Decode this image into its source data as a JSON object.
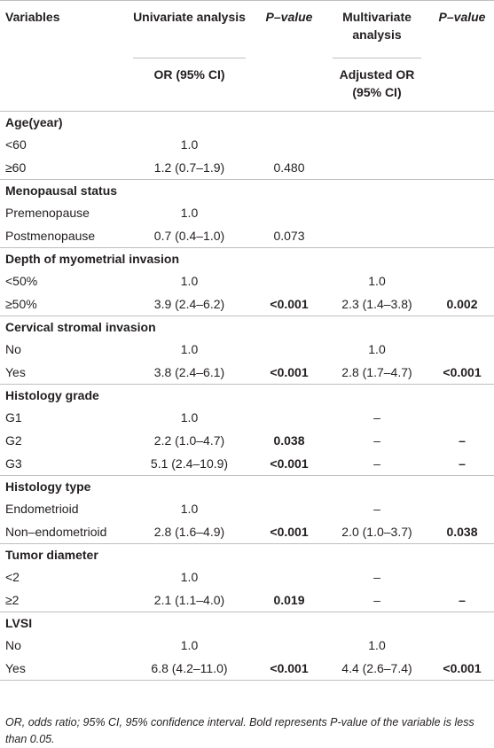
{
  "header": {
    "variables": "Variables",
    "univariate": "Univariate analysis",
    "pvalue1": "P–value",
    "multivariate": "Multivariate analysis",
    "pvalue2": "P–value",
    "or_ci": "OR (95% CI)",
    "adjusted_or": "Adjusted OR (95% CI)"
  },
  "groups": [
    {
      "title": "Age(year)",
      "rows": [
        {
          "label": "<60",
          "or": "1.0",
          "p1": "",
          "p1_bold": false,
          "aor": "",
          "p2": "",
          "p2_bold": false
        },
        {
          "label": "≥60",
          "or": "1.2 (0.7–1.9)",
          "p1": "0.480",
          "p1_bold": false,
          "aor": "",
          "p2": "",
          "p2_bold": false
        }
      ]
    },
    {
      "title": "Menopausal status",
      "rows": [
        {
          "label": "Premenopause",
          "or": "1.0",
          "p1": "",
          "p1_bold": false,
          "aor": "",
          "p2": "",
          "p2_bold": false
        },
        {
          "label": "Postmenopause",
          "or": "0.7 (0.4–1.0)",
          "p1": "0.073",
          "p1_bold": false,
          "aor": "",
          "p2": "",
          "p2_bold": false
        }
      ]
    },
    {
      "title": "Depth of myometrial invasion",
      "rows": [
        {
          "label": "<50%",
          "or": "1.0",
          "p1": "",
          "p1_bold": false,
          "aor": "1.0",
          "p2": "",
          "p2_bold": false
        },
        {
          "label": "≥50%",
          "or": "3.9 (2.4–6.2)",
          "p1": "<0.001",
          "p1_bold": true,
          "aor": "2.3 (1.4–3.8)",
          "p2": "0.002",
          "p2_bold": true
        }
      ]
    },
    {
      "title": "Cervical stromal invasion",
      "rows": [
        {
          "label": "No",
          "or": "1.0",
          "p1": "",
          "p1_bold": false,
          "aor": "1.0",
          "p2": "",
          "p2_bold": false
        },
        {
          "label": "Yes",
          "or": "3.8 (2.4–6.1)",
          "p1": "<0.001",
          "p1_bold": true,
          "aor": "2.8 (1.7–4.7)",
          "p2": "<0.001",
          "p2_bold": true
        }
      ]
    },
    {
      "title": "Histology grade",
      "rows": [
        {
          "label": "G1",
          "or": "1.0",
          "p1": "",
          "p1_bold": false,
          "aor": "–",
          "p2": "",
          "p2_bold": false
        },
        {
          "label": "G2",
          "or": "2.2 (1.0–4.7)",
          "p1": "0.038",
          "p1_bold": true,
          "aor": "–",
          "p2": "–",
          "p2_bold": true
        },
        {
          "label": "G3",
          "or": "5.1 (2.4–10.9)",
          "p1": "<0.001",
          "p1_bold": true,
          "aor": "–",
          "p2": "–",
          "p2_bold": true
        }
      ]
    },
    {
      "title": "Histology type",
      "rows": [
        {
          "label": "Endometrioid",
          "or": "1.0",
          "p1": "",
          "p1_bold": false,
          "aor": "–",
          "p2": "",
          "p2_bold": false
        },
        {
          "label": "Non–endometrioid",
          "or": "2.8 (1.6–4.9)",
          "p1": "<0.001",
          "p1_bold": true,
          "aor": "2.0 (1.0–3.7)",
          "p2": "0.038",
          "p2_bold": true
        }
      ]
    },
    {
      "title": "Tumor diameter",
      "rows": [
        {
          "label": "<2",
          "or": "1.0",
          "p1": "",
          "p1_bold": false,
          "aor": "–",
          "p2": "",
          "p2_bold": false
        },
        {
          "label": "≥2",
          "or": "2.1 (1.1–4.0)",
          "p1": "0.019",
          "p1_bold": true,
          "aor": "–",
          "p2": "–",
          "p2_bold": true
        }
      ]
    },
    {
      "title": "LVSI",
      "rows": [
        {
          "label": "No",
          "or": "1.0",
          "p1": "",
          "p1_bold": false,
          "aor": "1.0",
          "p2": "",
          "p2_bold": false
        },
        {
          "label": "Yes",
          "or": "6.8 (4.2–11.0)",
          "p1": "<0.001",
          "p1_bold": true,
          "aor": "4.4 (2.6–7.4)",
          "p2": "<0.001",
          "p2_bold": true
        }
      ]
    }
  ],
  "footnote": "OR, odds ratio; 95% CI, 95% confidence interval. Bold represents P-value of the variable is less than 0.05."
}
